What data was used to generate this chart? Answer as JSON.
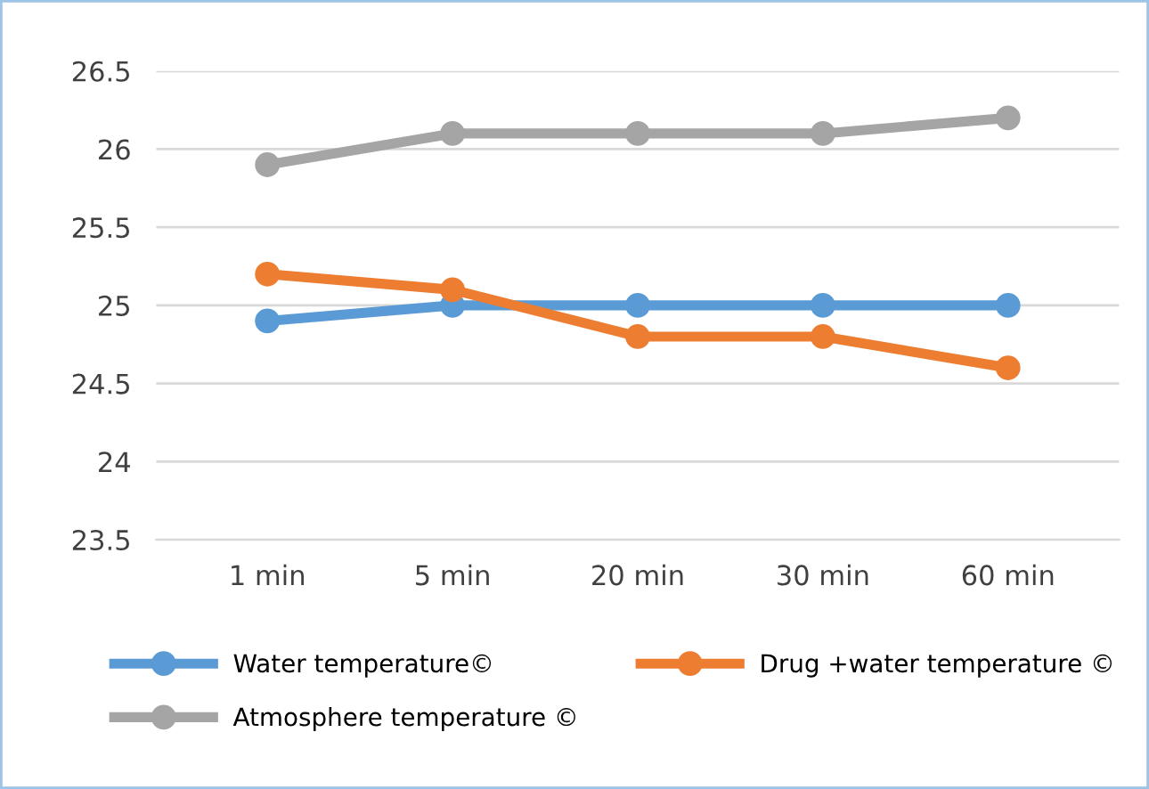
{
  "chart_data": {
    "type": "line",
    "categories": [
      "1 min",
      "5 min",
      "20 min",
      "30 min",
      "60 min"
    ],
    "series": [
      {
        "name": "Water temperature©",
        "color": "#5b9bd5",
        "values": [
          24.9,
          25,
          25,
          25,
          25
        ]
      },
      {
        "name": "Drug +water temperature ©",
        "color": "#ed7d31",
        "values": [
          25.2,
          25.1,
          24.8,
          24.8,
          24.6
        ]
      },
      {
        "name": "Atmosphere temperature ©",
        "color": "#a5a5a5",
        "values": [
          25.9,
          26.1,
          26.1,
          26.1,
          26.2
        ]
      }
    ],
    "ylim": [
      23.5,
      26.5
    ],
    "yticks": [
      23.5,
      24,
      24.5,
      25,
      25.5,
      26,
      26.5
    ],
    "grid": "y",
    "legend": "bottom",
    "marker": "circle",
    "line_style": "solid"
  }
}
